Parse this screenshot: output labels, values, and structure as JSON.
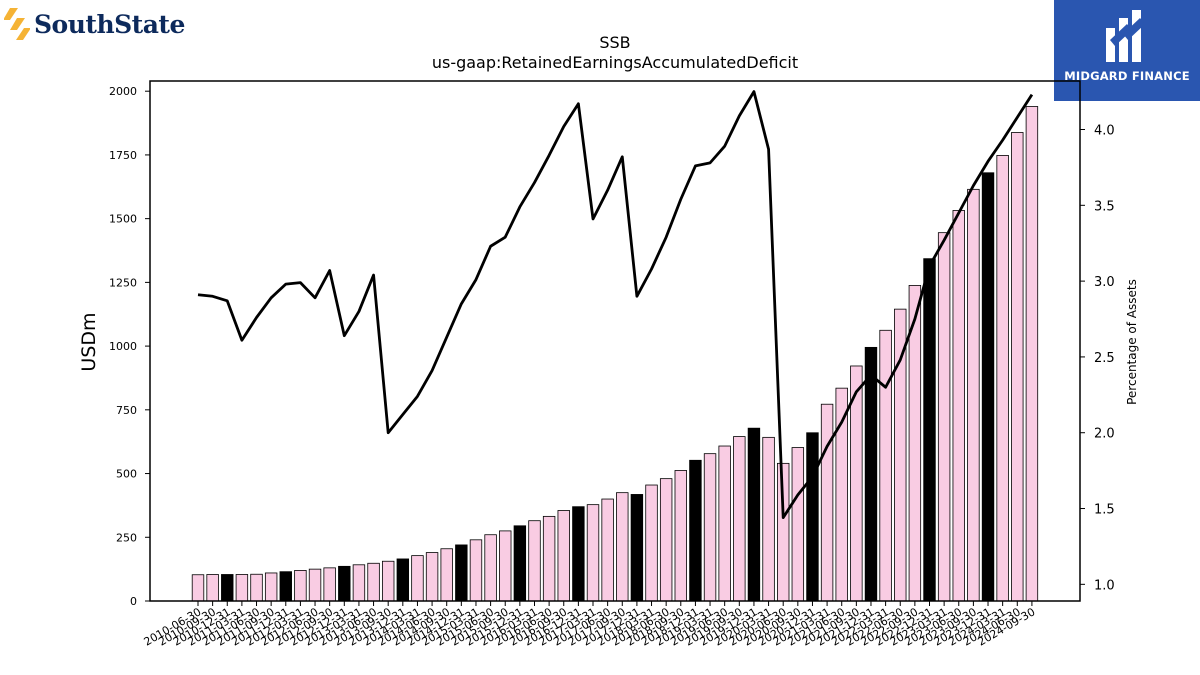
{
  "brand_left": {
    "name": "SouthState",
    "logo_color": "#f5b335",
    "text_color": "#0d2a5c"
  },
  "brand_right": {
    "name": "MIDGARD FINANCE",
    "bg_color": "#2a56b0"
  },
  "chart_data": {
    "type": "bar",
    "title": "SSB",
    "subtitle": "us-gaap:RetainedEarningsAccumulatedDeficit",
    "ylabel": "USDm",
    "y2label": "Percentage of Assets",
    "ylim": [
      0,
      2040
    ],
    "y2lim": [
      0.89,
      4.32
    ],
    "yticks": [
      0,
      250,
      500,
      750,
      1000,
      1250,
      1500,
      1750,
      2000
    ],
    "y2ticks": [
      1.0,
      1.5,
      2.0,
      2.5,
      3.0,
      3.5,
      4.0
    ],
    "y2tick_labels": [
      "1.0",
      "1.5",
      "2.0",
      "2.5",
      "3.0",
      "3.5",
      "4.0"
    ],
    "grid": false,
    "bar_colors": {
      "quarter": "#f9cce3",
      "year_end": "#000000",
      "edge": "#000000"
    },
    "line_color": "#000000",
    "categories": [
      "2010-06-30",
      "2010-09-30",
      "2010-12-31",
      "2011-03-31",
      "2011-06-30",
      "2011-09-30",
      "2011-12-31",
      "2012-03-31",
      "2012-06-30",
      "2012-09-30",
      "2012-12-31",
      "2013-03-31",
      "2013-06-30",
      "2013-09-30",
      "2013-12-31",
      "2014-03-31",
      "2014-06-30",
      "2014-09-30",
      "2014-12-31",
      "2015-03-31",
      "2015-06-30",
      "2015-09-30",
      "2015-12-31",
      "2016-03-31",
      "2016-06-30",
      "2016-09-30",
      "2016-12-31",
      "2017-03-31",
      "2017-06-30",
      "2017-09-30",
      "2017-12-31",
      "2018-03-31",
      "2018-06-30",
      "2018-09-30",
      "2018-12-31",
      "2019-03-31",
      "2019-06-30",
      "2019-09-30",
      "2019-12-31",
      "2020-03-31",
      "2020-06-30",
      "2020-09-30",
      "2020-12-31",
      "2021-03-31",
      "2021-06-30",
      "2021-09-30",
      "2021-12-31",
      "2022-03-31",
      "2022-06-30",
      "2022-09-30",
      "2022-12-31",
      "2023-03-31",
      "2023-06-30",
      "2023-09-30",
      "2023-12-31",
      "2024-03-31",
      "2024-06-30",
      "2024-09-30"
    ],
    "series": [
      {
        "type": "bar",
        "axis": "left",
        "values": [
          103,
          104,
          104,
          104,
          105,
          110,
          115,
          120,
          125,
          130,
          136,
          142,
          148,
          156,
          165,
          178,
          190,
          205,
          220,
          240,
          260,
          275,
          295,
          315,
          332,
          355,
          370,
          378,
          400,
          425,
          418,
          455,
          480,
          512,
          552,
          578,
          608,
          645,
          678,
          642,
          540,
          602,
          660,
          772,
          835,
          922,
          995,
          1062,
          1145,
          1238,
          1343,
          1445,
          1532,
          1615,
          1680,
          1748,
          1838,
          1940
        ]
      },
      {
        "type": "line",
        "axis": "right",
        "values": [
          2.91,
          2.9,
          2.87,
          2.61,
          2.76,
          2.89,
          2.98,
          2.99,
          2.89,
          3.07,
          2.64,
          2.8,
          3.04,
          2.0,
          2.12,
          2.24,
          2.41,
          2.63,
          2.85,
          3.01,
          3.23,
          3.29,
          3.49,
          3.65,
          3.83,
          4.02,
          4.17,
          3.41,
          3.6,
          3.82,
          2.9,
          3.08,
          3.29,
          3.54,
          3.76,
          3.78,
          3.89,
          4.09,
          4.25,
          3.87,
          1.44,
          1.59,
          1.71,
          1.91,
          2.07,
          2.27,
          2.38,
          2.3,
          2.48,
          2.75,
          3.1,
          3.27,
          3.45,
          3.63,
          3.79,
          3.93,
          4.08,
          4.23
        ]
      }
    ]
  }
}
